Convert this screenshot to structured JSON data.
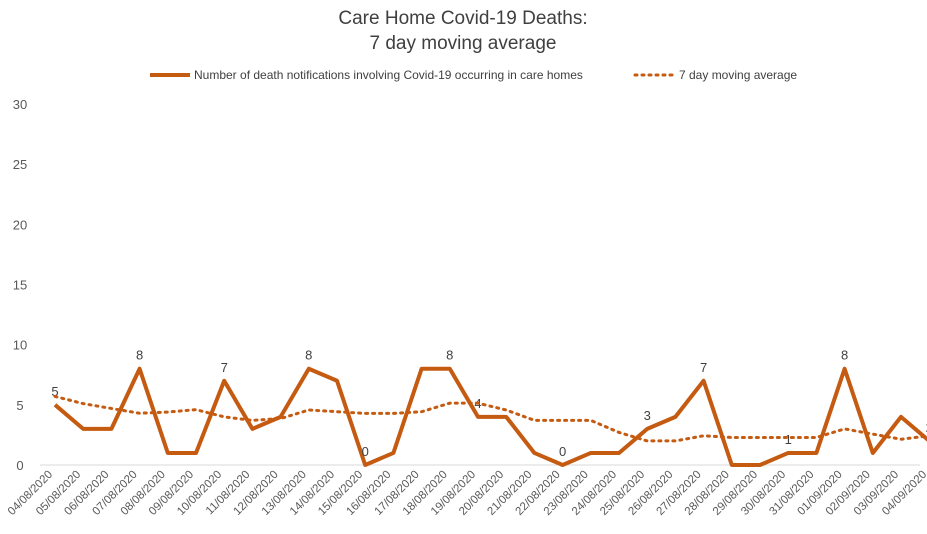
{
  "chart_data": {
    "type": "line",
    "title": "Care Home Covid-19 Deaths:",
    "subtitle": "7 day moving average",
    "categories": [
      "04/08/2020",
      "05/08/2020",
      "06/08/2020",
      "07/08/2020",
      "08/08/2020",
      "09/08/2020",
      "10/08/2020",
      "11/08/2020",
      "12/08/2020",
      "13/08/2020",
      "14/08/2020",
      "15/08/2020",
      "16/08/2020",
      "17/08/2020",
      "18/08/2020",
      "19/08/2020",
      "20/08/2020",
      "21/08/2020",
      "22/08/2020",
      "23/08/2020",
      "24/08/2020",
      "25/08/2020",
      "26/08/2020",
      "27/08/2020",
      "28/08/2020",
      "29/08/2020",
      "30/08/2020",
      "31/08/2020",
      "01/09/2020",
      "02/09/2020",
      "03/09/2020",
      "04/09/2020"
    ],
    "series": [
      {
        "name": "Number of death notifications involving Covid-19 occurring in care homes",
        "color": "#c55a11",
        "dash": "solid",
        "values": [
          5,
          3,
          3,
          8,
          1,
          1,
          7,
          3,
          4,
          8,
          7,
          0,
          1,
          8,
          8,
          4,
          4,
          1,
          0,
          1,
          1,
          3,
          4,
          7,
          0,
          0,
          1,
          1,
          8,
          1,
          4,
          2
        ],
        "value_labels": [
          "5",
          null,
          null,
          "8",
          null,
          null,
          "7",
          null,
          null,
          "8",
          null,
          "0",
          null,
          null,
          "8",
          "4",
          null,
          null,
          "0",
          null,
          null,
          "3",
          null,
          "7",
          null,
          null,
          "1",
          null,
          "8",
          null,
          null,
          "2"
        ]
      },
      {
        "name": "7 day moving average",
        "color": "#c55a11",
        "dash": "dotted",
        "values": [
          5.7,
          5.1,
          4.7,
          4.3,
          4.4,
          4.6,
          4.0,
          3.71,
          3.86,
          4.57,
          4.43,
          4.29,
          4.29,
          4.43,
          5.14,
          5.14,
          4.57,
          3.71,
          3.71,
          3.71,
          2.71,
          2.0,
          2.0,
          2.43,
          2.29,
          2.29,
          2.29,
          2.29,
          3.0,
          2.57,
          2.14,
          2.43
        ]
      }
    ],
    "ylim": [
      0,
      30
    ],
    "yticks": [
      0,
      5,
      10,
      15,
      20,
      25,
      30
    ],
    "grid": false,
    "legend": "top"
  }
}
